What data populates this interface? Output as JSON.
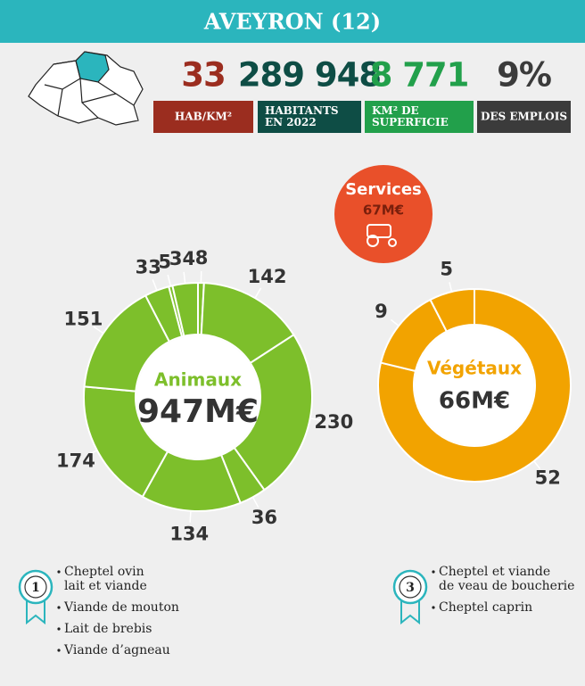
{
  "title": "AVEYRON (12)",
  "stats": [
    {
      "value": "33",
      "label": [
        "HAB/KM²"
      ],
      "color": "#9b2d1f"
    },
    {
      "value": "289 948",
      "label": [
        "HABITANTS",
        "EN 2022"
      ],
      "color": "#0e4d45"
    },
    {
      "value": "8 771",
      "label": [
        "KM² DE",
        "SUPERFICIE"
      ],
      "color": "#22a04b"
    },
    {
      "value": "9%",
      "label": [
        "DES EMPLOIS"
      ],
      "color": "#3b3b3b"
    }
  ],
  "animaux": {
    "title": "Animaux",
    "total": "947M€",
    "color": "#7dbf2b",
    "values": [
      8,
      142,
      230,
      36,
      134,
      174,
      151,
      33,
      5,
      34
    ]
  },
  "vegetaux": {
    "title": "Végétaux",
    "total": "66M€",
    "color": "#f2a300",
    "values": [
      52,
      9,
      5
    ]
  },
  "services": {
    "title": "Services",
    "total": "67M€",
    "color": "#e9502a"
  },
  "ranks": [
    {
      "rank": "1",
      "items": [
        [
          "Cheptel ovin",
          "lait et viande"
        ],
        [
          "Viande de mouton"
        ],
        [
          "Lait de brebis"
        ],
        [
          "Viande d’agneau"
        ]
      ]
    },
    {
      "rank": "3",
      "items": [
        [
          "Cheptel et viande",
          "de veau de boucherie"
        ],
        [
          "Cheptel caprin"
        ]
      ]
    }
  ]
}
